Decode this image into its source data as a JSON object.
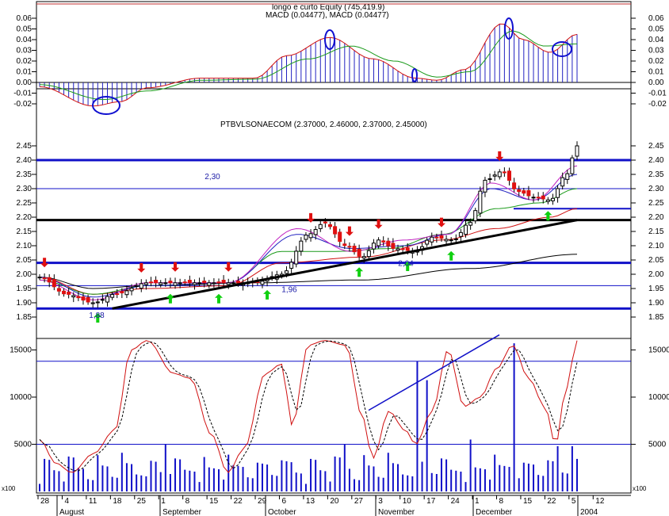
{
  "chart": {
    "equity_title": "longo e curto Equity (745,419.9)",
    "macd_title": "MACD (0.04477), MACD (0.04477)",
    "price_title": "PTBVLSONAECOM (2.37000, 2.46000, 2.37000, 2.45000)",
    "volume_multiplier": "x100"
  },
  "chart_data": {
    "type": "line",
    "panels": [
      {
        "name": "MACD",
        "ylim": [
          -0.03,
          0.065
        ],
        "ticks": [
          "0.06",
          "0.05",
          "0.04",
          "0.03",
          "0.02",
          "0.01",
          "0.00",
          "-0.01",
          "-0.02"
        ],
        "tick_values": [
          0.06,
          0.05,
          0.04,
          0.03,
          0.02,
          0.01,
          0.0,
          -0.01,
          -0.02
        ],
        "last_value": 0.04477
      },
      {
        "name": "Price",
        "ylim": [
          1.84,
          2.47
        ],
        "ticks": [
          "2.45",
          "2.40",
          "2.35",
          "2.30",
          "2.25",
          "2.20",
          "2.15",
          "2.10",
          "2.05",
          "2.00",
          "1.95",
          "1.90",
          "1.85"
        ],
        "tick_values": [
          2.45,
          2.4,
          2.35,
          2.3,
          2.25,
          2.2,
          2.15,
          2.1,
          2.05,
          2.0,
          1.95,
          1.9,
          1.85
        ],
        "last_ohlc": {
          "open": 2.37,
          "high": 2.46,
          "low": 2.37,
          "close": 2.45
        },
        "level_labels": [
          {
            "text": "2,30",
            "value": 2.3
          },
          {
            "text": "1,96",
            "value": 1.96
          },
          {
            "text": "1,88",
            "value": 1.88
          },
          {
            "text": "2,04",
            "value": 2.04
          }
        ],
        "horizontal_levels": [
          2.4,
          2.3,
          2.19,
          2.04,
          1.96,
          1.88
        ]
      },
      {
        "name": "Volume",
        "ylim": [
          0,
          17000
        ],
        "ticks": [
          "15000",
          "10000",
          "5000"
        ],
        "tick_values": [
          15000,
          10000,
          5000
        ]
      }
    ],
    "x_labels": {
      "days": [
        "28",
        "4",
        "11",
        "18",
        "25",
        "1",
        "8",
        "15",
        "22",
        "29",
        "6",
        "13",
        "20",
        "27",
        "3",
        "10",
        "17",
        "24",
        "1",
        "8",
        "15",
        "22",
        "5",
        "12"
      ],
      "months": [
        "August",
        "September",
        "October",
        "November",
        "December",
        "2004"
      ]
    }
  }
}
